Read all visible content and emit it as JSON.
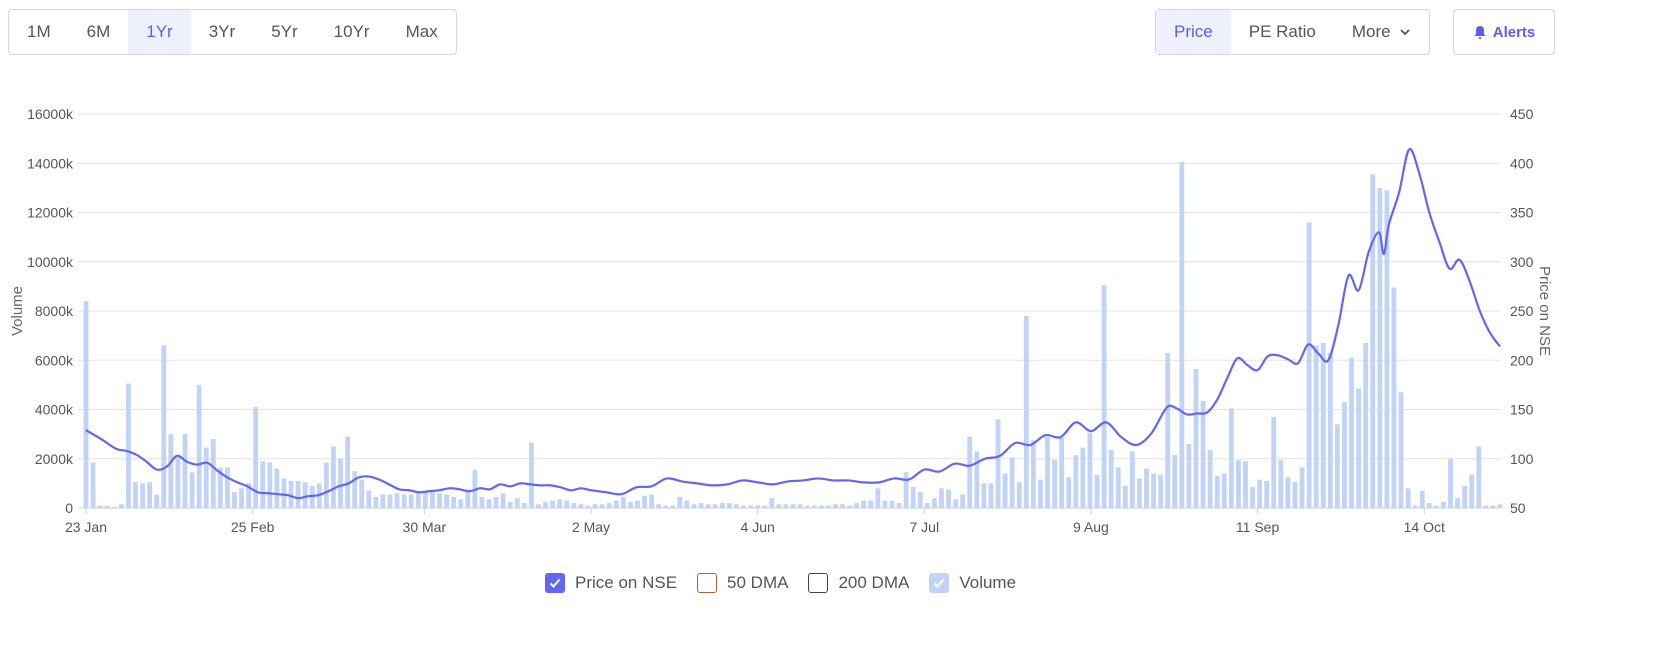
{
  "range_tabs": [
    {
      "label": "1M",
      "active": false
    },
    {
      "label": "6M",
      "active": false
    },
    {
      "label": "1Yr",
      "active": true
    },
    {
      "label": "3Yr",
      "active": false
    },
    {
      "label": "5Yr",
      "active": false
    },
    {
      "label": "10Yr",
      "active": false
    },
    {
      "label": "Max",
      "active": false
    }
  ],
  "metric_tabs": [
    {
      "label": "Price",
      "active": true
    },
    {
      "label": "PE Ratio",
      "active": false
    },
    {
      "label": "More",
      "active": false
    }
  ],
  "alerts_label": "Alerts",
  "legend": [
    {
      "label": "Price on NSE",
      "checked": true
    },
    {
      "label": "50 DMA",
      "checked": false
    },
    {
      "label": "200 DMA",
      "checked": false
    },
    {
      "label": "Volume",
      "checked": true
    }
  ],
  "colors": {
    "accent": "#5b5fe6",
    "price_line": "#6366f1",
    "volume_bar": "#c2d3f8",
    "dma50": "#a36a30",
    "dma200": "#444444"
  },
  "chart_data": {
    "type": "bar",
    "title": "",
    "ylabel_left": "Volume",
    "ylabel_right": "Price on NSE",
    "y_left_ticks": [
      "0",
      "2000k",
      "4000k",
      "6000k",
      "8000k",
      "10000k",
      "12000k",
      "14000k",
      "16000k"
    ],
    "y_right_ticks": [
      "50",
      "100",
      "150",
      "200",
      "250",
      "300",
      "350",
      "400",
      "450"
    ],
    "ylim_left": [
      0,
      16000
    ],
    "ylim_right": [
      50,
      450
    ],
    "x_ticks": [
      {
        "label": "23 Jan",
        "day": 0
      },
      {
        "label": "25 Feb",
        "day": 33
      },
      {
        "label": "30 Mar",
        "day": 67
      },
      {
        "label": "2 May",
        "day": 100
      },
      {
        "label": "4 Jun",
        "day": 133
      },
      {
        "label": "7 Jul",
        "day": 166
      },
      {
        "label": "9 Aug",
        "day": 199
      },
      {
        "label": "11 Sep",
        "day": 232
      },
      {
        "label": "14 Oct",
        "day": 265
      }
    ],
    "x_days_total": 280,
    "grid": true,
    "legend_position": "bottom",
    "volume": [
      [
        0,
        8400
      ],
      [
        1,
        1850
      ],
      [
        2,
        100
      ],
      [
        3,
        80
      ],
      [
        4,
        50
      ],
      [
        5,
        150
      ],
      [
        6,
        5050
      ],
      [
        7,
        1050
      ],
      [
        8,
        1000
      ],
      [
        9,
        1050
      ],
      [
        10,
        550
      ],
      [
        11,
        6600
      ],
      [
        12,
        3000
      ],
      [
        13,
        2050
      ],
      [
        14,
        3000
      ],
      [
        15,
        1450
      ],
      [
        16,
        5000
      ],
      [
        17,
        2450
      ],
      [
        18,
        2800
      ],
      [
        19,
        1650
      ],
      [
        20,
        1650
      ],
      [
        21,
        650
      ],
      [
        22,
        800
      ],
      [
        23,
        1000
      ],
      [
        24,
        4100
      ],
      [
        25,
        1900
      ],
      [
        26,
        1850
      ],
      [
        27,
        1600
      ],
      [
        28,
        1200
      ],
      [
        29,
        1100
      ],
      [
        30,
        1100
      ],
      [
        31,
        1050
      ],
      [
        32,
        900
      ],
      [
        33,
        1000
      ],
      [
        34,
        1850
      ],
      [
        35,
        2500
      ],
      [
        36,
        2000
      ],
      [
        37,
        2900
      ],
      [
        38,
        1500
      ],
      [
        39,
        1150
      ],
      [
        40,
        700
      ],
      [
        41,
        450
      ],
      [
        42,
        550
      ],
      [
        43,
        550
      ],
      [
        44,
        600
      ],
      [
        45,
        550
      ],
      [
        46,
        550
      ],
      [
        47,
        650
      ],
      [
        48,
        700
      ],
      [
        49,
        750
      ],
      [
        50,
        600
      ],
      [
        51,
        550
      ],
      [
        52,
        450
      ],
      [
        53,
        350
      ],
      [
        54,
        750
      ],
      [
        55,
        1550
      ],
      [
        56,
        450
      ],
      [
        57,
        350
      ],
      [
        58,
        450
      ],
      [
        59,
        600
      ],
      [
        60,
        250
      ],
      [
        61,
        400
      ],
      [
        62,
        200
      ],
      [
        63,
        2650
      ],
      [
        64,
        150
      ],
      [
        65,
        250
      ],
      [
        66,
        300
      ],
      [
        67,
        350
      ],
      [
        68,
        300
      ],
      [
        69,
        200
      ],
      [
        70,
        150
      ],
      [
        71,
        100
      ],
      [
        72,
        150
      ],
      [
        73,
        150
      ],
      [
        74,
        200
      ],
      [
        75,
        300
      ],
      [
        76,
        450
      ],
      [
        77,
        250
      ],
      [
        78,
        300
      ],
      [
        79,
        500
      ],
      [
        80,
        550
      ],
      [
        81,
        150
      ],
      [
        82,
        100
      ],
      [
        83,
        100
      ],
      [
        84,
        450
      ],
      [
        85,
        300
      ],
      [
        86,
        150
      ],
      [
        87,
        200
      ],
      [
        88,
        150
      ],
      [
        89,
        150
      ],
      [
        90,
        200
      ],
      [
        91,
        200
      ],
      [
        92,
        150
      ],
      [
        93,
        100
      ],
      [
        94,
        100
      ],
      [
        95,
        100
      ],
      [
        96,
        100
      ],
      [
        97,
        400
      ],
      [
        98,
        150
      ],
      [
        99,
        150
      ],
      [
        100,
        150
      ],
      [
        101,
        150
      ],
      [
        102,
        100
      ],
      [
        103,
        100
      ],
      [
        104,
        100
      ],
      [
        105,
        100
      ],
      [
        106,
        150
      ],
      [
        107,
        150
      ],
      [
        108,
        100
      ],
      [
        109,
        200
      ],
      [
        110,
        300
      ],
      [
        111,
        300
      ],
      [
        112,
        800
      ],
      [
        113,
        300
      ],
      [
        114,
        300
      ],
      [
        115,
        200
      ],
      [
        116,
        1450
      ],
      [
        117,
        850
      ],
      [
        118,
        650
      ],
      [
        119,
        200
      ],
      [
        120,
        400
      ],
      [
        121,
        800
      ],
      [
        122,
        750
      ],
      [
        123,
        350
      ],
      [
        124,
        550
      ],
      [
        125,
        2900
      ],
      [
        126,
        2300
      ],
      [
        127,
        1000
      ],
      [
        128,
        1000
      ],
      [
        129,
        3600
      ],
      [
        130,
        1400
      ],
      [
        131,
        2050
      ],
      [
        132,
        1050
      ],
      [
        133,
        7800
      ],
      [
        134,
        2750
      ],
      [
        135,
        1150
      ],
      [
        136,
        2900
      ],
      [
        137,
        1950
      ],
      [
        138,
        2850
      ],
      [
        139,
        1250
      ],
      [
        140,
        2150
      ],
      [
        141,
        2450
      ],
      [
        142,
        3050
      ],
      [
        143,
        1350
      ],
      [
        144,
        9050
      ],
      [
        145,
        2350
      ],
      [
        146,
        1650
      ],
      [
        147,
        900
      ],
      [
        148,
        2300
      ],
      [
        149,
        1200
      ],
      [
        150,
        1600
      ],
      [
        151,
        1400
      ],
      [
        152,
        1350
      ],
      [
        153,
        6300
      ],
      [
        154,
        2150
      ],
      [
        155,
        14050
      ],
      [
        156,
        2600
      ],
      [
        157,
        5650
      ],
      [
        158,
        4350
      ],
      [
        159,
        2350
      ],
      [
        160,
        1300
      ],
      [
        161,
        1400
      ],
      [
        162,
        4050
      ],
      [
        163,
        1950
      ],
      [
        164,
        1900
      ],
      [
        165,
        850
      ],
      [
        166,
        1150
      ],
      [
        167,
        1100
      ],
      [
        168,
        3700
      ],
      [
        169,
        1950
      ],
      [
        170,
        1250
      ],
      [
        171,
        1050
      ],
      [
        172,
        1650
      ],
      [
        173,
        11600
      ],
      [
        174,
        6600
      ],
      [
        175,
        6700
      ],
      [
        176,
        6300
      ],
      [
        177,
        3400
      ],
      [
        178,
        4300
      ],
      [
        179,
        6100
      ],
      [
        180,
        4850
      ],
      [
        181,
        6700
      ],
      [
        182,
        13550
      ],
      [
        183,
        13000
      ],
      [
        184,
        12900
      ],
      [
        185,
        8950
      ],
      [
        186,
        4700
      ],
      [
        187,
        800
      ],
      [
        188,
        100
      ],
      [
        189,
        700
      ],
      [
        190,
        200
      ],
      [
        191,
        100
      ],
      [
        192,
        250
      ],
      [
        193,
        2000
      ],
      [
        194,
        400
      ],
      [
        195,
        900
      ],
      [
        196,
        1350
      ],
      [
        197,
        2500
      ],
      [
        198,
        100
      ],
      [
        199,
        100
      ],
      [
        200,
        150
      ]
    ],
    "price": [
      [
        0,
        129
      ],
      [
        3,
        120
      ],
      [
        6,
        110
      ],
      [
        8,
        108
      ],
      [
        10,
        104
      ],
      [
        12,
        97
      ],
      [
        14,
        89
      ],
      [
        16,
        92
      ],
      [
        18,
        103
      ],
      [
        20,
        97
      ],
      [
        22,
        94
      ],
      [
        24,
        96
      ],
      [
        26,
        88
      ],
      [
        28,
        81
      ],
      [
        30,
        76
      ],
      [
        32,
        72
      ],
      [
        34,
        66
      ],
      [
        36,
        65
      ],
      [
        38,
        64
      ],
      [
        40,
        63
      ],
      [
        42,
        60
      ],
      [
        44,
        62
      ],
      [
        46,
        63
      ],
      [
        48,
        67
      ],
      [
        50,
        72
      ],
      [
        52,
        75
      ],
      [
        54,
        81
      ],
      [
        56,
        82
      ],
      [
        58,
        79
      ],
      [
        60,
        74
      ],
      [
        62,
        69
      ],
      [
        64,
        68
      ],
      [
        66,
        66
      ],
      [
        68,
        67
      ],
      [
        70,
        68
      ],
      [
        72,
        70
      ],
      [
        74,
        69
      ],
      [
        76,
        67
      ],
      [
        78,
        70
      ],
      [
        80,
        69
      ],
      [
        82,
        74
      ],
      [
        84,
        72
      ],
      [
        86,
        75
      ],
      [
        88,
        74
      ],
      [
        90,
        73
      ],
      [
        92,
        73
      ],
      [
        94,
        71
      ],
      [
        96,
        68
      ],
      [
        98,
        70
      ],
      [
        100,
        68
      ],
      [
        103,
        66
      ],
      [
        106,
        64
      ],
      [
        109,
        71
      ],
      [
        112,
        72
      ],
      [
        115,
        80
      ],
      [
        118,
        77
      ],
      [
        121,
        75
      ],
      [
        124,
        73
      ],
      [
        127,
        74
      ],
      [
        130,
        78
      ],
      [
        133,
        76
      ],
      [
        136,
        74
      ],
      [
        139,
        77
      ],
      [
        142,
        78
      ],
      [
        145,
        80
      ],
      [
        148,
        78
      ],
      [
        151,
        78
      ],
      [
        154,
        76
      ],
      [
        157,
        76
      ],
      [
        160,
        80
      ],
      [
        163,
        79
      ],
      [
        166,
        89
      ],
      [
        169,
        87
      ],
      [
        172,
        95
      ],
      [
        175,
        93
      ],
      [
        178,
        100
      ],
      [
        181,
        103
      ],
      [
        184,
        116
      ],
      [
        187,
        114
      ],
      [
        190,
        124
      ],
      [
        193,
        122
      ],
      [
        196,
        137
      ],
      [
        199,
        128
      ],
      [
        202,
        137
      ],
      [
        205,
        122
      ],
      [
        208,
        114
      ],
      [
        211,
        126
      ],
      [
        214,
        152
      ],
      [
        216,
        151
      ],
      [
        218,
        145
      ],
      [
        220,
        146
      ],
      [
        222,
        147
      ],
      [
        224,
        160
      ],
      [
        226,
        182
      ],
      [
        228,
        202
      ],
      [
        230,
        195
      ],
      [
        232,
        190
      ],
      [
        234,
        204
      ],
      [
        236,
        205
      ],
      [
        238,
        201
      ],
      [
        240,
        197
      ],
      [
        242,
        216
      ],
      [
        244,
        207
      ],
      [
        246,
        200
      ],
      [
        248,
        236
      ],
      [
        250,
        286
      ],
      [
        252,
        271
      ],
      [
        254,
        310
      ],
      [
        256,
        330
      ],
      [
        257,
        308
      ],
      [
        258,
        338
      ],
      [
        260,
        370
      ],
      [
        262,
        414
      ],
      [
        264,
        390
      ],
      [
        266,
        350
      ],
      [
        268,
        320
      ],
      [
        270,
        293
      ],
      [
        272,
        302
      ],
      [
        274,
        280
      ],
      [
        276,
        250
      ],
      [
        278,
        228
      ],
      [
        280,
        214
      ]
    ]
  }
}
